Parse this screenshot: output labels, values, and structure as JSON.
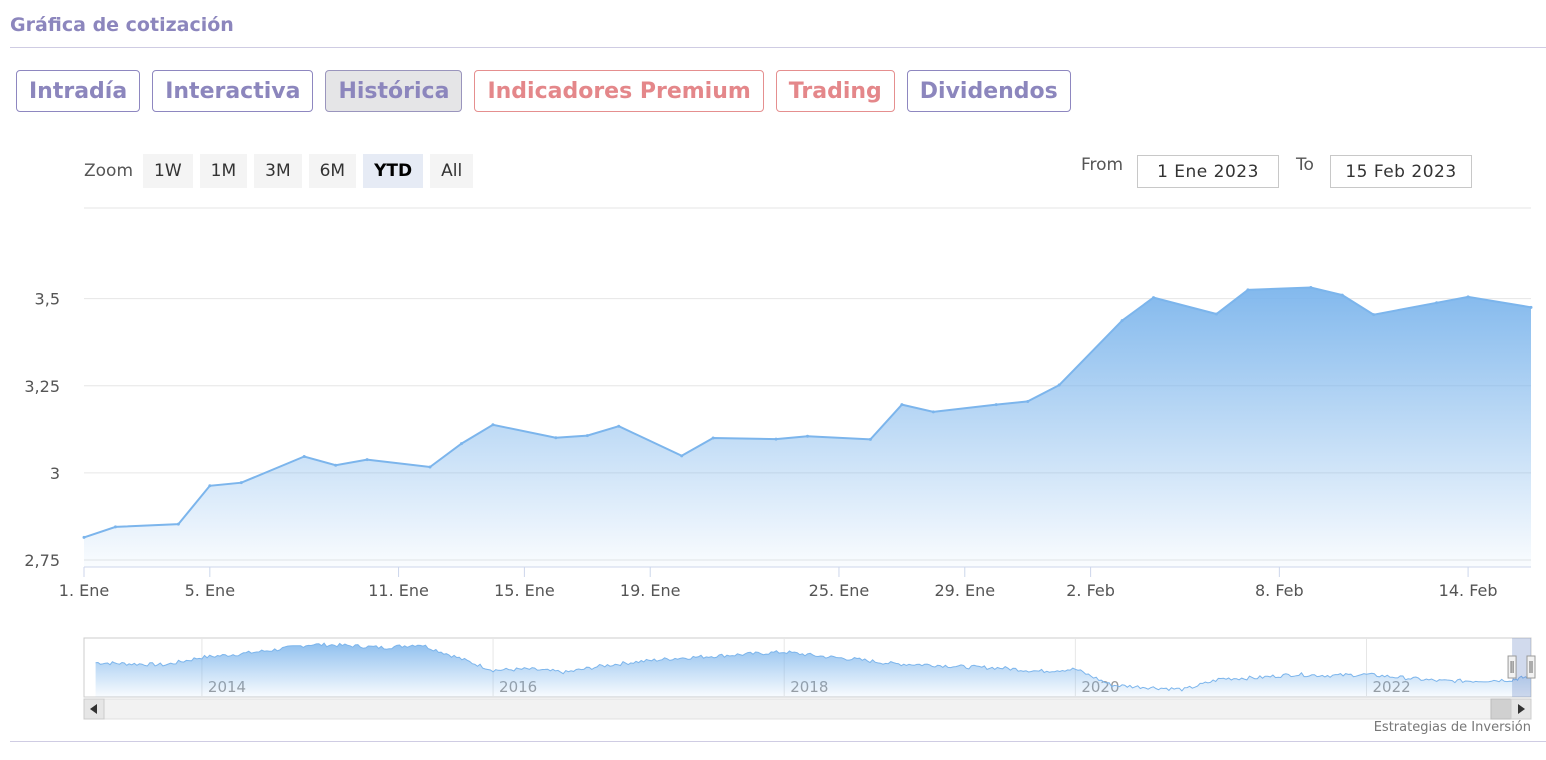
{
  "page_title": "Gráfica de cotización",
  "tabs": [
    {
      "label": "Intradía",
      "style": "normal"
    },
    {
      "label": "Interactiva",
      "style": "normal"
    },
    {
      "label": "Histórica",
      "style": "active"
    },
    {
      "label": "Indicadores Premium",
      "style": "red"
    },
    {
      "label": "Trading",
      "style": "red"
    },
    {
      "label": "Dividendos",
      "style": "normal"
    }
  ],
  "zoom": {
    "label": "Zoom",
    "options": [
      "1W",
      "1M",
      "3M",
      "6M",
      "YTD",
      "All"
    ],
    "selected": "YTD"
  },
  "range": {
    "from_label": "From",
    "from_value": "1 Ene 2023",
    "to_label": "To",
    "to_value": "15 Feb 2023"
  },
  "credit": "Estrategias de Inversión",
  "colors": {
    "accent": "#8c86bd",
    "premium": "#e4878a",
    "series_line": "#7cb5ec"
  },
  "chart_data": {
    "type": "area",
    "title": "",
    "xlabel": "",
    "ylabel": "",
    "ylim": [
      2.73,
      3.76
    ],
    "xlim": [
      "2023-01-01",
      "2023-02-16"
    ],
    "yticks": [
      {
        "value": 2.75,
        "label": "2,75"
      },
      {
        "value": 3.0,
        "label": "3"
      },
      {
        "value": 3.25,
        "label": "3,25"
      },
      {
        "value": 3.5,
        "label": "3,5"
      }
    ],
    "xticks": [
      {
        "date": "2023-01-01",
        "label": "1. Ene"
      },
      {
        "date": "2023-01-05",
        "label": "5. Ene"
      },
      {
        "date": "2023-01-11",
        "label": "11. Ene"
      },
      {
        "date": "2023-01-15",
        "label": "15. Ene"
      },
      {
        "date": "2023-01-19",
        "label": "19. Ene"
      },
      {
        "date": "2023-01-25",
        "label": "25. Ene"
      },
      {
        "date": "2023-01-29",
        "label": "29. Ene"
      },
      {
        "date": "2023-02-02",
        "label": "2. Feb"
      },
      {
        "date": "2023-02-08",
        "label": "8. Feb"
      },
      {
        "date": "2023-02-14",
        "label": "14. Feb"
      }
    ],
    "grid": true,
    "legend": "none",
    "series": [
      {
        "points": [
          {
            "x": "2023-01-01",
            "y": 2.815
          },
          {
            "x": "2023-01-02",
            "y": 2.845
          },
          {
            "x": "2023-01-04",
            "y": 2.853
          },
          {
            "x": "2023-01-05",
            "y": 2.963
          },
          {
            "x": "2023-01-06",
            "y": 2.972
          },
          {
            "x": "2023-01-08",
            "y": 3.047
          },
          {
            "x": "2023-01-09",
            "y": 3.022
          },
          {
            "x": "2023-01-10",
            "y": 3.038
          },
          {
            "x": "2023-01-12",
            "y": 3.017
          },
          {
            "x": "2023-01-13",
            "y": 3.084
          },
          {
            "x": "2023-01-14",
            "y": 3.138
          },
          {
            "x": "2023-01-16",
            "y": 3.101
          },
          {
            "x": "2023-01-17",
            "y": 3.107
          },
          {
            "x": "2023-01-18",
            "y": 3.134
          },
          {
            "x": "2023-01-20",
            "y": 3.049
          },
          {
            "x": "2023-01-21",
            "y": 3.1
          },
          {
            "x": "2023-01-23",
            "y": 3.097
          },
          {
            "x": "2023-01-24",
            "y": 3.105
          },
          {
            "x": "2023-01-26",
            "y": 3.096
          },
          {
            "x": "2023-01-27",
            "y": 3.196
          },
          {
            "x": "2023-01-28",
            "y": 3.175
          },
          {
            "x": "2023-01-30",
            "y": 3.196
          },
          {
            "x": "2023-01-31",
            "y": 3.205
          },
          {
            "x": "2023-02-01",
            "y": 3.252
          },
          {
            "x": "2023-02-03",
            "y": 3.437
          },
          {
            "x": "2023-02-04",
            "y": 3.503
          },
          {
            "x": "2023-02-06",
            "y": 3.456
          },
          {
            "x": "2023-02-07",
            "y": 3.525
          },
          {
            "x": "2023-02-09",
            "y": 3.532
          },
          {
            "x": "2023-02-10",
            "y": 3.51
          },
          {
            "x": "2023-02-11",
            "y": 3.454
          },
          {
            "x": "2023-02-13",
            "y": 3.488
          },
          {
            "x": "2023-02-14",
            "y": 3.505
          },
          {
            "x": "2023-02-16",
            "y": 3.475
          }
        ]
      }
    ],
    "navigator": {
      "xticks": [
        {
          "year": 2014,
          "label": "2014"
        },
        {
          "year": 2016,
          "label": "2016"
        },
        {
          "year": 2018,
          "label": "2018"
        },
        {
          "year": 2020,
          "label": "2020"
        },
        {
          "year": 2022,
          "label": "2022"
        }
      ],
      "xlim": [
        2013.19,
        2023.13
      ],
      "ylim": [
        1.5,
        7.0
      ],
      "selected_range": [
        2023.0,
        2023.13
      ],
      "series": [
        [
          2013.27,
          4.7
        ],
        [
          2013.5,
          4.6
        ],
        [
          2013.75,
          4.5
        ],
        [
          2014.0,
          5.2
        ],
        [
          2014.25,
          5.5
        ],
        [
          2014.5,
          5.9
        ],
        [
          2014.75,
          6.4
        ],
        [
          2015.0,
          6.3
        ],
        [
          2015.25,
          6.1
        ],
        [
          2015.5,
          6.4
        ],
        [
          2015.75,
          5.2
        ],
        [
          2016.0,
          4.0
        ],
        [
          2016.25,
          4.1
        ],
        [
          2016.5,
          3.8
        ],
        [
          2016.75,
          4.4
        ],
        [
          2017.0,
          4.8
        ],
        [
          2017.25,
          5.1
        ],
        [
          2017.5,
          5.3
        ],
        [
          2017.75,
          5.5
        ],
        [
          2018.0,
          5.7
        ],
        [
          2018.25,
          5.3
        ],
        [
          2018.5,
          5.0
        ],
        [
          2018.75,
          4.6
        ],
        [
          2019.0,
          4.5
        ],
        [
          2019.25,
          4.3
        ],
        [
          2019.5,
          4.2
        ],
        [
          2019.75,
          3.9
        ],
        [
          2020.0,
          4.1
        ],
        [
          2020.25,
          2.6
        ],
        [
          2020.5,
          2.4
        ],
        [
          2020.75,
          2.2
        ],
        [
          2021.0,
          3.2
        ],
        [
          2021.25,
          3.3
        ],
        [
          2021.5,
          3.6
        ],
        [
          2021.75,
          3.5
        ],
        [
          2022.0,
          3.6
        ],
        [
          2022.25,
          3.3
        ],
        [
          2022.5,
          3.0
        ],
        [
          2022.75,
          3.0
        ],
        [
          2023.0,
          3.1
        ],
        [
          2023.13,
          3.45
        ]
      ]
    }
  }
}
